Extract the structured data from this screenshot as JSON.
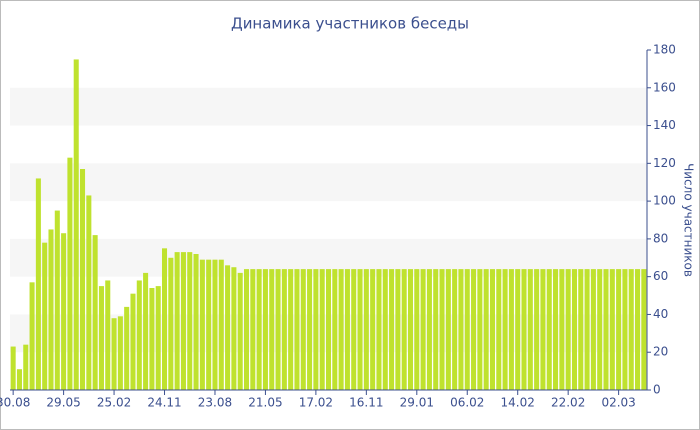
{
  "chart_data": {
    "type": "bar",
    "title": "Динамика участников беседы",
    "y_axis_label": "Число участников",
    "categories": [
      "30.08",
      null,
      null,
      null,
      null,
      null,
      null,
      null,
      "29.05",
      null,
      null,
      null,
      null,
      null,
      null,
      null,
      "25.02",
      null,
      null,
      null,
      null,
      null,
      null,
      null,
      "24.11",
      null,
      null,
      null,
      null,
      null,
      null,
      null,
      "23.08",
      null,
      null,
      null,
      null,
      null,
      null,
      null,
      "21.05",
      null,
      null,
      null,
      null,
      null,
      null,
      null,
      "17.02",
      null,
      null,
      null,
      null,
      null,
      null,
      null,
      "16.11",
      null,
      null,
      null,
      null,
      null,
      null,
      null,
      "29.01",
      null,
      null,
      null,
      null,
      null,
      null,
      null,
      "06.02",
      null,
      null,
      null,
      null,
      null,
      null,
      null,
      "14.02",
      null,
      null,
      null,
      null,
      null,
      null,
      null,
      "22.02",
      null,
      null,
      null,
      null,
      null,
      null,
      null,
      "02.03",
      null,
      null,
      null,
      null
    ],
    "values": [
      23,
      11,
      24,
      57,
      112,
      78,
      85,
      95,
      83,
      123,
      175,
      117,
      103,
      82,
      55,
      58,
      38,
      39,
      44,
      51,
      58,
      62,
      54,
      55,
      75,
      70,
      73,
      73,
      73,
      72,
      69,
      69,
      69,
      69,
      66,
      65,
      62,
      64,
      64,
      64,
      64,
      64,
      64,
      64,
      64,
      64,
      64,
      64,
      64,
      64,
      64,
      64,
      64,
      64,
      64,
      64,
      64,
      64,
      64,
      64,
      64,
      64,
      64,
      64,
      64,
      64,
      64,
      64,
      64,
      64,
      64,
      64,
      64,
      64,
      64,
      64,
      64,
      64,
      64,
      64,
      64,
      64,
      64,
      64,
      64,
      64,
      64,
      64,
      64,
      64,
      64,
      64,
      64,
      64,
      64,
      64,
      64,
      64,
      64,
      64,
      64
    ],
    "color": "#bfe22e",
    "ylim": [
      0,
      180
    ],
    "yticks": [
      0,
      20,
      40,
      60,
      80,
      100,
      120,
      140,
      160,
      180
    ],
    "y_axis_side": "right",
    "grid_bands": true
  }
}
